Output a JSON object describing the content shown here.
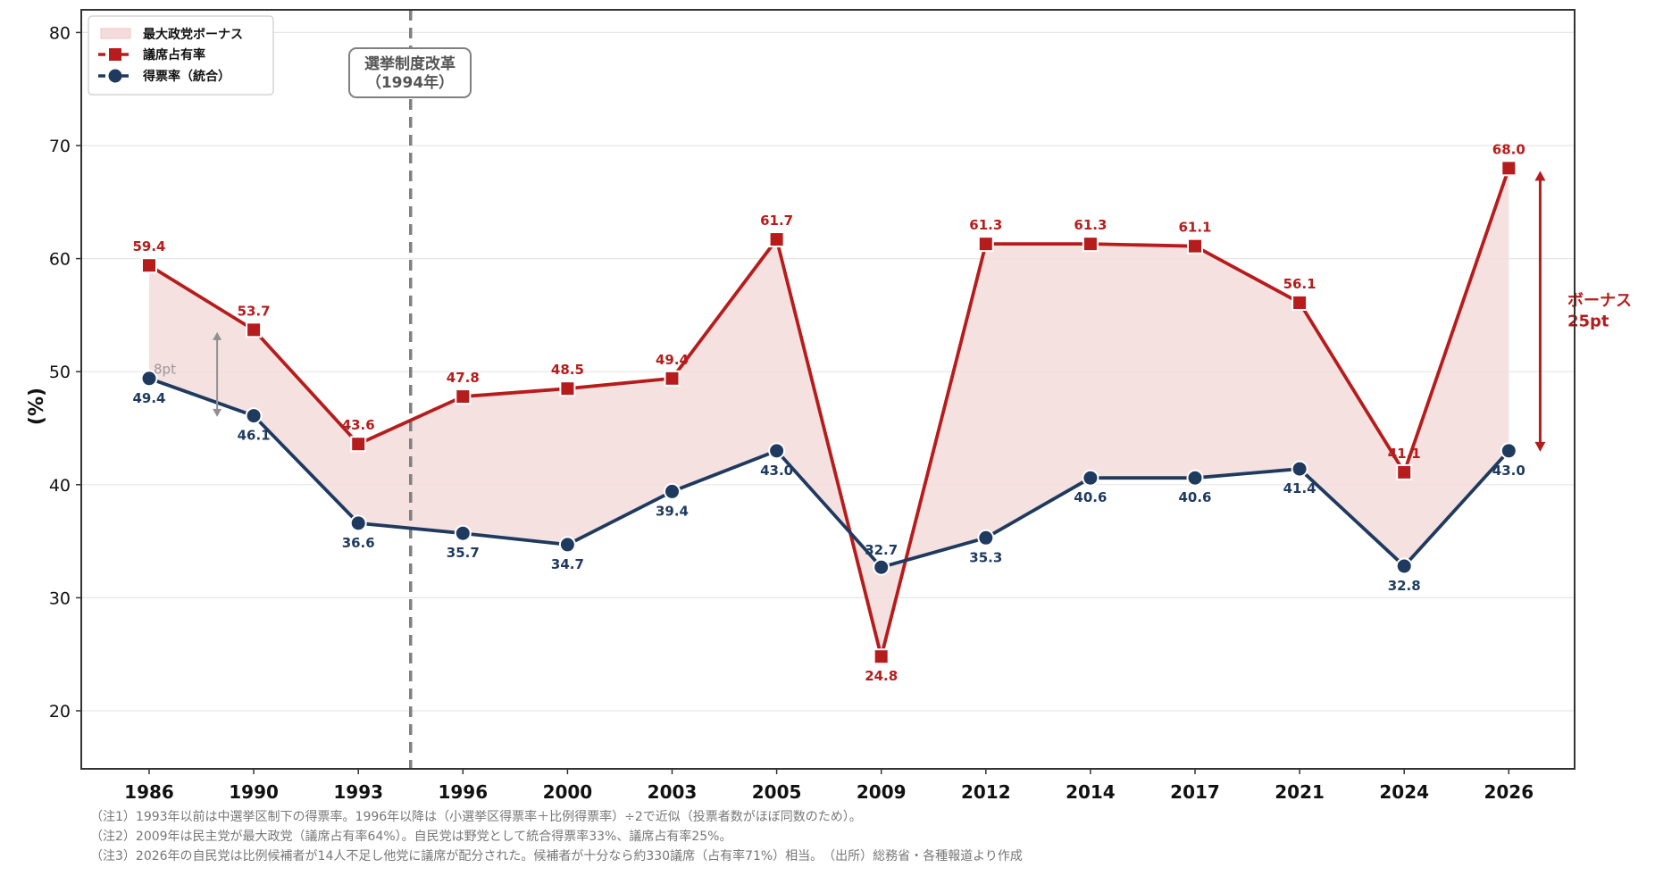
{
  "chart_data": {
    "type": "line",
    "title": "",
    "xlabel": "",
    "ylabel": "(%)",
    "ylim": [
      15,
      81
    ],
    "yticks": [
      20,
      30,
      40,
      50,
      60,
      70,
      80
    ],
    "grid": true,
    "categories": [
      "1986",
      "1990",
      "1993",
      "1996",
      "2000",
      "2003",
      "2005",
      "2009",
      "2012",
      "2014",
      "2017",
      "2021",
      "2024",
      "2026"
    ],
    "series": [
      {
        "name": "議席占有率",
        "color": "#b71c1c",
        "marker": "square",
        "values": [
          59.4,
          53.7,
          43.6,
          47.8,
          48.5,
          49.4,
          61.7,
          24.8,
          61.3,
          61.3,
          61.1,
          56.1,
          41.1,
          68.0
        ],
        "labels": [
          "59.4",
          "53.7",
          "43.6",
          "47.8",
          "48.5",
          "49.4",
          "61.7",
          "24.8",
          "61.3",
          "61.3",
          "61.1",
          "56.1",
          "41.1",
          "68.0"
        ]
      },
      {
        "name": "得票率（統合）",
        "color": "#1f3a5f",
        "marker": "circle",
        "values": [
          49.4,
          46.1,
          36.6,
          35.7,
          34.7,
          39.4,
          43.0,
          32.7,
          35.3,
          40.6,
          40.6,
          41.4,
          32.8,
          43.0
        ],
        "labels": [
          "49.4",
          "46.1",
          "36.6",
          "35.7",
          "34.7",
          "39.4",
          "43.0",
          "32.7",
          "35.3",
          "40.6",
          "40.6",
          "41.4",
          "32.8",
          "43.0"
        ]
      }
    ],
    "fill_between": {
      "name": "最大政党ボーナス",
      "color": "#f5dcdc"
    },
    "legend": {
      "position": "top-left",
      "entries": [
        "最大政党ボーナス",
        "議席占有率",
        "得票率（統合）"
      ]
    },
    "annotations": {
      "reform_line": {
        "after_category": "1993",
        "label_line1": "選挙制度改革",
        "label_line2": "（1994年）"
      },
      "bonus_2026": {
        "category": "2026",
        "from": 43.0,
        "to": 68.0,
        "line1": "ボーナス",
        "line2": "25pt"
      },
      "bonus_1986": {
        "category_between": [
          "1986",
          "1990"
        ],
        "from": 46.0,
        "to": 53.5,
        "label": "8pt"
      }
    }
  },
  "footnotes": [
    "（注1）1993年以前は中選挙区制下の得票率。1996年以降は（小選挙区得票率＋比例得票率）÷2で近似（投票者数がほぼ同数のため）。",
    "（注2）2009年は民主党が最大政党（議席占有率64%）。自民党は野党として統合得票率33%、議席占有率25%。",
    "（注3）2026年の自民党は比例候補者が14人不足し他党に議席が配分された。候補者が十分なら約330議席（占有率71%）相当。　（出所）総務省・各種報道より作成"
  ],
  "colors": {
    "seat": "#b71c1c",
    "vote": "#1f3a5f",
    "fill": "#f5dcdc",
    "grid": "#e6e6e6",
    "reform": "#808080"
  }
}
